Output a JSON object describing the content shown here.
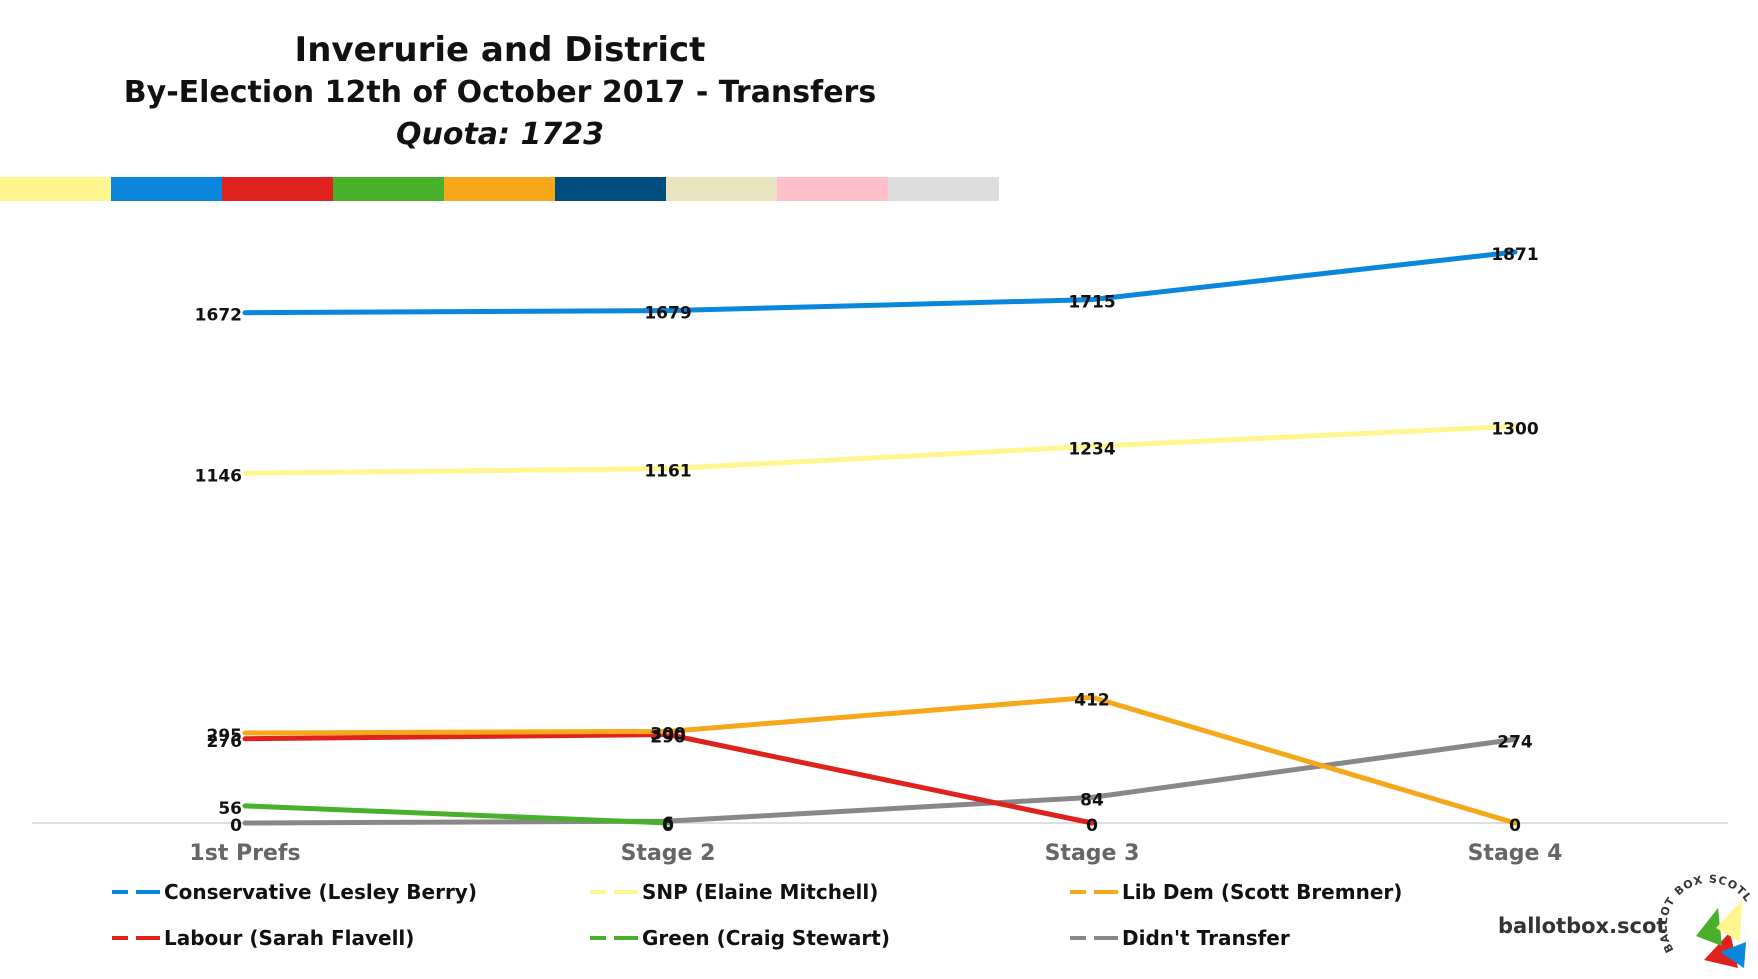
{
  "header": {
    "title": "Inverurie and District",
    "subtitle": "By-Election  12th of October 2017 - Transfers",
    "quota": "Quota: 1723"
  },
  "palette": [
    "#FFF68F",
    "#0A87DC",
    "#E0221E",
    "#48B02A",
    "#F6A81A",
    "#004C7C",
    "#E8E4C0",
    "#FFC0CC",
    "#DDDDDD"
  ],
  "chart_data": {
    "type": "line",
    "categories": [
      "1st Prefs",
      "Stage 2",
      "Stage 3",
      "Stage 4"
    ],
    "ylim": [
      0,
      1900
    ],
    "grid": false,
    "legend_position": "bottom",
    "series": [
      {
        "name": "Conservative (Lesley Berry)",
        "color": "#0A87DC",
        "values": [
          1672,
          1679,
          1715,
          1871
        ]
      },
      {
        "name": "SNP (Elaine Mitchell)",
        "color": "#FFF68F",
        "values": [
          1146,
          1161,
          1234,
          1300
        ]
      },
      {
        "name": "Lib Dem (Scott Bremner)",
        "color": "#F6A81A",
        "values": [
          295,
          300,
          412,
          0
        ]
      },
      {
        "name": "Labour (Sarah Flavell)",
        "color": "#E0221E",
        "values": [
          276,
          290,
          0,
          null
        ]
      },
      {
        "name": "Green (Craig Stewart)",
        "color": "#48B02A",
        "values": [
          56,
          0,
          null,
          null
        ]
      },
      {
        "name": "Didn't Transfer",
        "color": "#888888",
        "values": [
          0,
          6,
          84,
          274
        ]
      }
    ]
  },
  "brand": "ballotbox.scot",
  "logo_text": "BALLOT BOX SCOTLAND"
}
